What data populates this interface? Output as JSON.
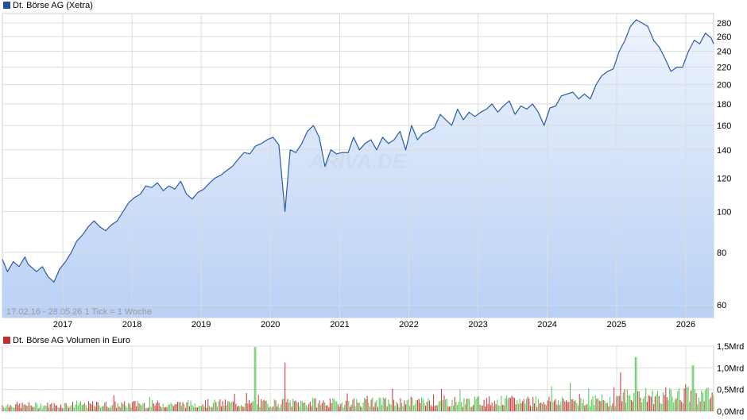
{
  "chart_data": [
    {
      "type": "area",
      "legend_label": "Dt. Börse AG (Xetra)",
      "legend_color": "#1f4e9c",
      "line_color": "#2a5aa8",
      "fill_top": "#eef4fd",
      "fill_bottom": "#b9d0f5",
      "y_scale": "log",
      "ylim": [
        56,
        295
      ],
      "y_ticks": [
        60,
        80,
        100,
        120,
        140,
        160,
        180,
        200,
        220,
        240,
        260,
        280
      ],
      "x_ticks": [
        "2017",
        "2018",
        "2019",
        "2020",
        "2021",
        "2022",
        "2023",
        "2024",
        "2025",
        "2026"
      ],
      "date_range": "17.02.16 - 28.05.26",
      "tick_info": "1 Tick = 1 Woche",
      "watermark": "ARIVA.DE",
      "grid": true,
      "x_start": "2016-02-17",
      "x_end": "2026-05-28",
      "series": [
        {
          "x": [
            "2016-02-17",
            "2016-03-15",
            "2016-04-15",
            "2016-05-15",
            "2016-06-15",
            "2016-07-01",
            "2016-08-15",
            "2016-09-15",
            "2016-10-15",
            "2016-11-15",
            "2016-12-15",
            "2017-01-15",
            "2017-02-15",
            "2017-03-15",
            "2017-04-15",
            "2017-05-15",
            "2017-06-15",
            "2017-07-15",
            "2017-08-15",
            "2017-09-15",
            "2017-10-15",
            "2017-11-15",
            "2017-12-15",
            "2018-01-15",
            "2018-02-15",
            "2018-03-15",
            "2018-04-15",
            "2018-05-15",
            "2018-06-15",
            "2018-07-15",
            "2018-08-15",
            "2018-09-15",
            "2018-10-15",
            "2018-11-15",
            "2018-12-15",
            "2019-01-15",
            "2019-02-15",
            "2019-03-15",
            "2019-04-15",
            "2019-05-15",
            "2019-06-15",
            "2019-07-15",
            "2019-08-15",
            "2019-09-15",
            "2019-10-15",
            "2019-11-15",
            "2019-12-15",
            "2020-01-15",
            "2020-02-15",
            "2020-03-18",
            "2020-04-15",
            "2020-05-15",
            "2020-06-15",
            "2020-07-15",
            "2020-08-15",
            "2020-09-15",
            "2020-10-15",
            "2020-11-15",
            "2020-12-15",
            "2021-01-15",
            "2021-02-15",
            "2021-03-15",
            "2021-04-15",
            "2021-05-15",
            "2021-06-15",
            "2021-07-15",
            "2021-08-15",
            "2021-09-15",
            "2021-10-15",
            "2021-11-15",
            "2021-12-15",
            "2022-01-15",
            "2022-02-15",
            "2022-03-15",
            "2022-04-15",
            "2022-05-15",
            "2022-06-15",
            "2022-07-15",
            "2022-08-15",
            "2022-09-15",
            "2022-10-15",
            "2022-11-15",
            "2022-12-15",
            "2023-01-15",
            "2023-02-15",
            "2023-03-15",
            "2023-04-15",
            "2023-05-15",
            "2023-06-15",
            "2023-07-15",
            "2023-08-15",
            "2023-09-15",
            "2023-10-15",
            "2023-11-15",
            "2023-12-15",
            "2024-01-15",
            "2024-02-15",
            "2024-03-15",
            "2024-04-15",
            "2024-05-15",
            "2024-06-15",
            "2024-07-15",
            "2024-08-15",
            "2024-09-15",
            "2024-10-15",
            "2024-11-15",
            "2024-12-15",
            "2025-01-15",
            "2025-02-15",
            "2025-03-15",
            "2025-04-15",
            "2025-05-15",
            "2025-06-15",
            "2025-07-15",
            "2025-08-15",
            "2025-09-15",
            "2025-10-15",
            "2025-11-15",
            "2025-12-15",
            "2026-01-15",
            "2026-02-15",
            "2026-03-15",
            "2026-04-15",
            "2026-05-15",
            "2026-05-28"
          ],
          "values": [
            77,
            72,
            76,
            74,
            78,
            75,
            72,
            74,
            70,
            68,
            73,
            76,
            80,
            85,
            88,
            92,
            95,
            92,
            90,
            93,
            95,
            100,
            105,
            108,
            110,
            115,
            114,
            117,
            112,
            115,
            113,
            118,
            110,
            107,
            111,
            113,
            117,
            120,
            122,
            125,
            128,
            133,
            138,
            137,
            143,
            145,
            148,
            150,
            144,
            100,
            140,
            138,
            145,
            155,
            160,
            150,
            128,
            140,
            137,
            138,
            138,
            150,
            140,
            145,
            148,
            140,
            150,
            145,
            148,
            155,
            140,
            160,
            148,
            153,
            155,
            158,
            170,
            165,
            160,
            175,
            165,
            172,
            168,
            172,
            175,
            180,
            172,
            178,
            183,
            170,
            178,
            175,
            180,
            172,
            160,
            176,
            178,
            188,
            190,
            192,
            185,
            190,
            185,
            200,
            210,
            215,
            218,
            240,
            255,
            275,
            285,
            280,
            275,
            255,
            245,
            230,
            215,
            220,
            220,
            240,
            255,
            250,
            265,
            258,
            250
          ]
        }
      ]
    },
    {
      "type": "bar",
      "legend_label": "Dt. Börse AG Volumen in Euro",
      "legend_color": "#c03030",
      "color_up": "#5fc85a",
      "color_down": "#c84646",
      "y_ticks": [
        0,
        0.5,
        1.0,
        1.5
      ],
      "y_tick_labels": [
        "0,0Mrd",
        "0,5Mrd",
        "1,0Mrd",
        "1,5Mrd"
      ],
      "ylim": [
        0,
        1.5
      ],
      "spikes": [
        {
          "date": "2019-10-15",
          "value": 1.48
        },
        {
          "date": "2020-03-18",
          "value": 1.12
        },
        {
          "date": "2025-04-10",
          "value": 1.25
        },
        {
          "date": "2026-02-10",
          "value": 1.06
        }
      ]
    }
  ]
}
